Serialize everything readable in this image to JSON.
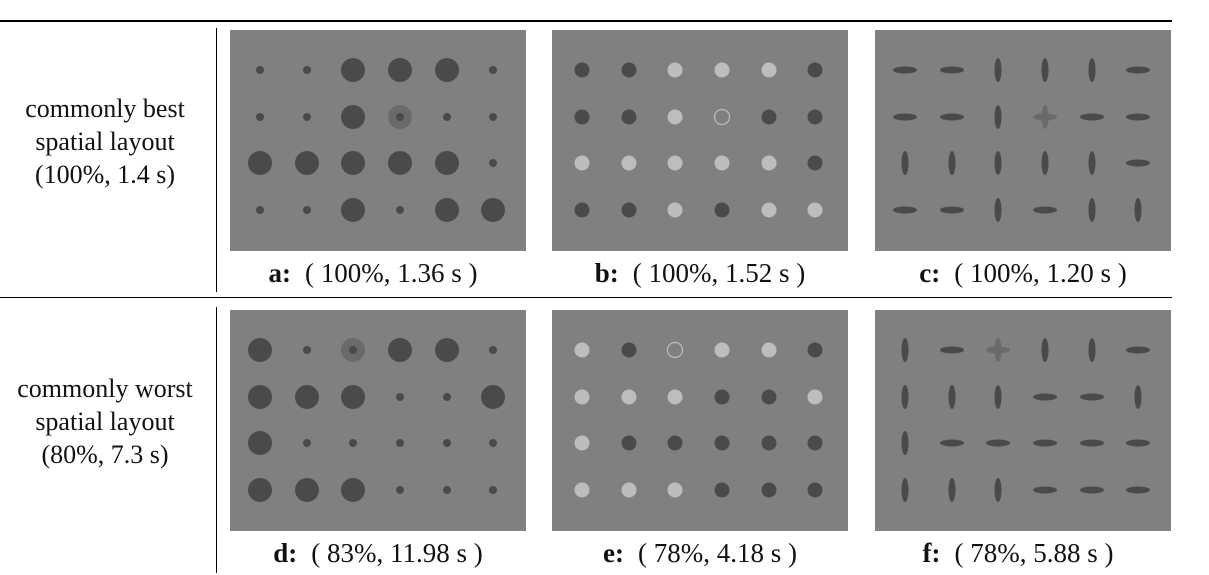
{
  "rows": [
    {
      "label_lines": [
        "commonly best",
        "spatial layout",
        "(100%, 1.4 s)"
      ],
      "panels": [
        {
          "letter": "a:",
          "result": "( 100%, 1.36 s )",
          "kind": "size",
          "grid": [
            [
              "s",
              "s",
              "L",
              "L",
              "L",
              "s"
            ],
            [
              "s",
              "s",
              "L",
              "T",
              "s",
              "s"
            ],
            [
              "L",
              "L",
              "L",
              "L",
              "L",
              "s"
            ],
            [
              "s",
              "s",
              "L",
              "s",
              "L",
              "L"
            ]
          ]
        },
        {
          "letter": "b:",
          "result": "( 100%, 1.52 s )",
          "kind": "color",
          "grid": [
            [
              "D",
              "D",
              "W",
              "W",
              "W",
              "D"
            ],
            [
              "D",
              "D",
              "W",
              "T",
              "D",
              "D"
            ],
            [
              "W",
              "W",
              "W",
              "W",
              "W",
              "D"
            ],
            [
              "D",
              "D",
              "W",
              "D",
              "W",
              "W"
            ]
          ]
        },
        {
          "letter": "c:",
          "result": "( 100%, 1.20 s )",
          "kind": "orientation",
          "grid": [
            [
              "H",
              "H",
              "V",
              "V",
              "V",
              "H"
            ],
            [
              "H",
              "H",
              "V",
              "T",
              "H",
              "H"
            ],
            [
              "V",
              "V",
              "V",
              "V",
              "V",
              "H"
            ],
            [
              "H",
              "H",
              "V",
              "H",
              "V",
              "V"
            ]
          ]
        }
      ]
    },
    {
      "label_lines": [
        "commonly worst",
        "spatial layout",
        "(80%, 7.3 s)"
      ],
      "panels": [
        {
          "letter": "d:",
          "result": "( 83%, 11.98 s )",
          "kind": "size",
          "grid": [
            [
              "L",
              "s",
              "T",
              "L",
              "L",
              "s"
            ],
            [
              "L",
              "L",
              "L",
              "s",
              "s",
              "L"
            ],
            [
              "L",
              "s",
              "s",
              "s",
              "s",
              "s"
            ],
            [
              "L",
              "L",
              "L",
              "s",
              "s",
              "s"
            ]
          ]
        },
        {
          "letter": "e:",
          "result": "( 78%, 4.18 s )",
          "kind": "color",
          "grid": [
            [
              "W",
              "D",
              "T",
              "W",
              "W",
              "D"
            ],
            [
              "W",
              "W",
              "W",
              "D",
              "D",
              "W"
            ],
            [
              "W",
              "D",
              "D",
              "D",
              "D",
              "D"
            ],
            [
              "W",
              "W",
              "W",
              "D",
              "D",
              "D"
            ]
          ]
        },
        {
          "letter": "f:",
          "result": "( 78%, 5.88 s )",
          "kind": "orientation",
          "grid": [
            [
              "V",
              "H",
              "T",
              "V",
              "V",
              "H"
            ],
            [
              "V",
              "V",
              "V",
              "H",
              "H",
              "V"
            ],
            [
              "V",
              "H",
              "H",
              "H",
              "H",
              "H"
            ],
            [
              "V",
              "V",
              "V",
              "H",
              "H",
              "H"
            ]
          ]
        }
      ]
    }
  ],
  "colors": {
    "panel_bg": "#808080",
    "dark_glyph": "#4a4a4a",
    "light_glyph": "#bdbdbd",
    "target_glyph": "#6a6a6a"
  }
}
